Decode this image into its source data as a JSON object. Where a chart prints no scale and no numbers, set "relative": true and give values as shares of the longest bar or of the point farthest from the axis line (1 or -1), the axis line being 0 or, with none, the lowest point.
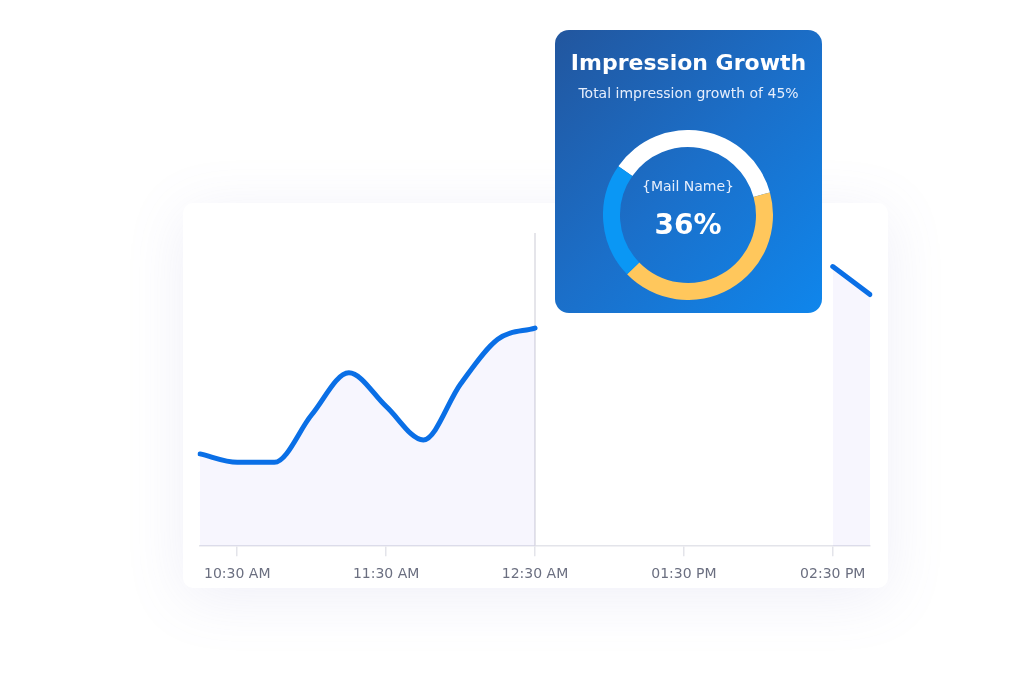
{
  "chart_data": [
    {
      "type": "area",
      "relative": true,
      "categories": [
        null,
        "10:30 AM",
        null,
        null,
        null,
        "11:30 AM",
        null,
        null,
        null,
        "12:30 AM",
        null,
        null,
        null,
        "01:30 PM",
        null,
        null,
        null,
        "02:30 PM",
        null
      ],
      "series": [
        {
          "color": "#0a6fe6",
          "values": [
            0.33,
            0.3,
            0.3,
            0.47,
            0.62,
            0.5,
            0.38,
            0.58,
            0.74,
            0.78,
            null,
            null,
            null,
            null,
            null,
            null,
            null,
            1,
            0.9
          ]
        }
      ],
      "ref_lines": [
        {
          "axis": "x",
          "value": "12:30 AM",
          "color": "#dcdde3"
        }
      ],
      "grid": false,
      "legend": false,
      "marker": "none"
    },
    {
      "type": "donut",
      "title": "Impression Growth",
      "subtitle": "Total impression growth of 45%",
      "categories": [
        null,
        null,
        null
      ],
      "values": [
        36,
        42,
        22
      ],
      "colors": [
        "#ffffff",
        "#ffc75c",
        "#0a97f5"
      ],
      "annotations": [
        "{Mail Name}",
        "36%"
      ],
      "legend": false
    }
  ]
}
